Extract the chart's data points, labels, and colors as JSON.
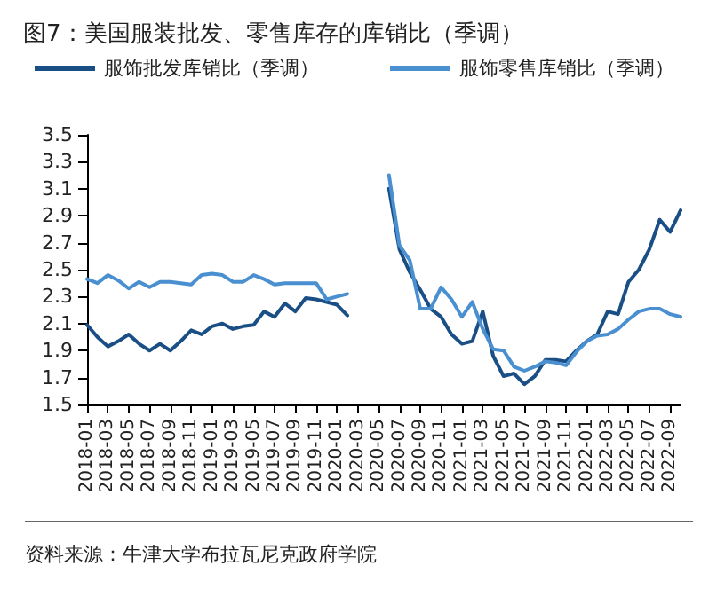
{
  "chart_data": {
    "type": "line",
    "title": "图7：美国服装批发、零售库存的库销比（季调）",
    "categories": [
      "2018-01",
      null,
      "2018-03",
      null,
      "2018-05",
      null,
      "2018-07",
      null,
      "2018-09",
      null,
      "2018-11",
      null,
      "2019-01",
      null,
      "2019-03",
      null,
      "2019-05",
      null,
      "2019-07",
      null,
      "2019-09",
      null,
      "2019-11",
      null,
      "2020-01",
      null,
      "2020-03",
      null,
      "2020-05",
      null,
      "2020-07",
      null,
      "2020-09",
      null,
      "2020-11",
      null,
      "2021-01",
      null,
      "2021-03",
      null,
      "2021-05",
      null,
      "2021-07",
      null,
      "2021-09",
      null,
      "2021-11",
      null,
      "2022-01",
      null,
      "2022-03",
      null,
      "2022-05",
      null,
      "2022-07",
      null,
      "2022-09",
      null
    ],
    "series": [
      {
        "name": "服饰批发库销比（季调）",
        "color": "#1a4f86",
        "values": [
          2.09,
          2.0,
          1.93,
          1.97,
          2.02,
          1.95,
          1.9,
          1.95,
          1.9,
          1.97,
          2.05,
          2.02,
          2.08,
          2.1,
          2.06,
          2.08,
          2.09,
          2.19,
          2.15,
          2.25,
          2.19,
          2.29,
          2.28,
          2.26,
          2.24,
          2.16,
          null,
          null,
          null,
          3.1,
          2.65,
          2.48,
          2.35,
          2.21,
          2.15,
          2.02,
          1.95,
          1.97,
          2.19,
          1.86,
          1.71,
          1.73,
          1.65,
          1.71,
          1.83,
          1.83,
          1.82,
          1.9,
          1.97,
          2.02,
          2.19,
          2.17,
          2.41,
          2.5,
          2.65,
          2.87,
          2.78,
          2.94
        ]
      },
      {
        "name": "服饰零售库销比（季调）",
        "color": "#4a8fd0",
        "values": [
          2.43,
          2.4,
          2.46,
          2.42,
          2.36,
          2.41,
          2.37,
          2.41,
          2.41,
          2.4,
          2.39,
          2.46,
          2.47,
          2.46,
          2.41,
          2.41,
          2.46,
          2.43,
          2.39,
          2.4,
          2.4,
          2.4,
          2.4,
          2.28,
          2.3,
          2.32,
          null,
          null,
          null,
          3.2,
          2.68,
          2.57,
          2.21,
          2.21,
          2.37,
          2.28,
          2.15,
          2.26,
          2.06,
          1.91,
          1.9,
          1.78,
          1.75,
          1.78,
          1.82,
          1.81,
          1.79,
          1.89,
          1.97,
          2.01,
          2.02,
          2.06,
          2.13,
          2.19,
          2.21,
          2.21,
          2.17,
          2.15
        ]
      }
    ],
    "ylim": [
      1.5,
      3.5
    ],
    "yticks": [
      1.5,
      1.7,
      1.9,
      2.1,
      2.3,
      2.5,
      2.7,
      2.9,
      3.1,
      3.3,
      3.5
    ],
    "grid": false,
    "legend": "top",
    "marker": "none",
    "line_style": "solid",
    "annotations": [
      "资料来源：牛津大学布拉瓦尼克政府学院"
    ]
  }
}
